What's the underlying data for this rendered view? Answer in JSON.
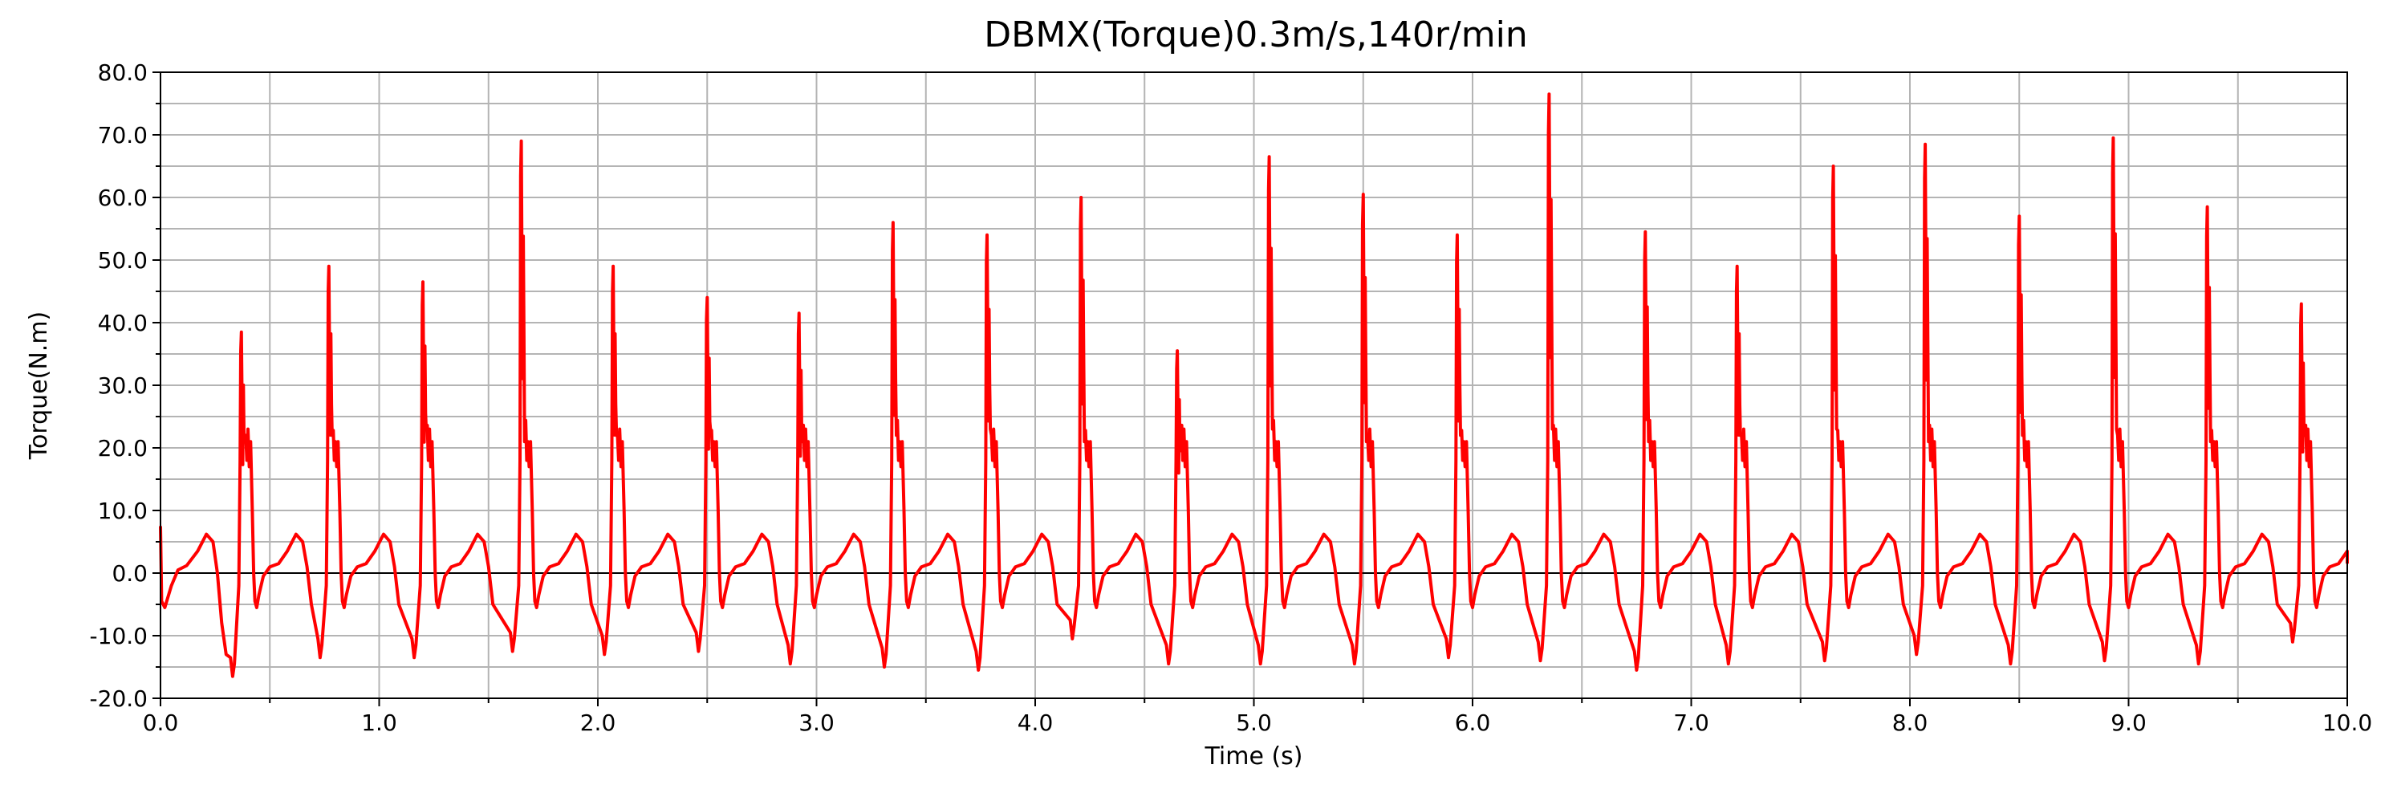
{
  "chart_data": {
    "type": "line",
    "title": "DBMX(Torque)0.3m/s,140r/min",
    "xlabel": "Time (s)",
    "ylabel": "Torque(N.m)",
    "xlim": [
      0.0,
      10.0
    ],
    "ylim": [
      -20.0,
      80.0
    ],
    "xticks": [
      "0.0",
      "1.0",
      "2.0",
      "3.0",
      "4.0",
      "5.0",
      "6.0",
      "7.0",
      "8.0",
      "9.0",
      "10.0"
    ],
    "yticks": [
      "80.0",
      "70.0",
      "60.0",
      "50.0",
      "40.0",
      "30.0",
      "20.0",
      "10.0",
      "0.0",
      "-10.0",
      "-20.0"
    ],
    "grid": true,
    "legend": "none",
    "series_color": "#ff0000",
    "grid_color": "#b4b4b4",
    "zero_line_color": "#000000",
    "period_s": 0.429,
    "first_peak_s": 0.37,
    "baseline_hump_max": 6.2,
    "negative_min_typical": -14.0,
    "peaks": [
      {
        "t": 0.37,
        "max": 38.5
      },
      {
        "t": 0.77,
        "max": 49.0
      },
      {
        "t": 1.2,
        "max": 46.5
      },
      {
        "t": 1.65,
        "max": 69.0
      },
      {
        "t": 2.07,
        "max": 49.0
      },
      {
        "t": 2.5,
        "max": 44.0
      },
      {
        "t": 2.92,
        "max": 41.5
      },
      {
        "t": 3.35,
        "max": 56.0
      },
      {
        "t": 3.78,
        "max": 54.0
      },
      {
        "t": 4.21,
        "max": 60.0
      },
      {
        "t": 4.65,
        "max": 35.5
      },
      {
        "t": 5.07,
        "max": 66.5
      },
      {
        "t": 5.5,
        "max": 60.5
      },
      {
        "t": 5.93,
        "max": 54.0
      },
      {
        "t": 6.35,
        "max": 76.5
      },
      {
        "t": 6.79,
        "max": 54.5
      },
      {
        "t": 7.21,
        "max": 49.0
      },
      {
        "t": 7.65,
        "max": 65.0
      },
      {
        "t": 8.07,
        "max": 68.5
      },
      {
        "t": 8.5,
        "max": 57.0
      },
      {
        "t": 8.93,
        "max": 69.5
      },
      {
        "t": 9.36,
        "max": 58.5
      },
      {
        "t": 9.79,
        "max": 43.0
      }
    ],
    "minima": [
      {
        "t": 0.33,
        "min": -16.5
      },
      {
        "t": 0.73,
        "min": -13.5
      },
      {
        "t": 1.16,
        "min": -13.5
      },
      {
        "t": 1.61,
        "min": -12.5
      },
      {
        "t": 2.03,
        "min": -13.0
      },
      {
        "t": 2.46,
        "min": -12.5
      },
      {
        "t": 2.88,
        "min": -14.5
      },
      {
        "t": 3.31,
        "min": -15.0
      },
      {
        "t": 3.74,
        "min": -15.5
      },
      {
        "t": 4.17,
        "min": -10.5
      },
      {
        "t": 4.61,
        "min": -14.5
      },
      {
        "t": 5.03,
        "min": -14.5
      },
      {
        "t": 5.46,
        "min": -14.5
      },
      {
        "t": 5.89,
        "min": -13.5
      },
      {
        "t": 6.31,
        "min": -14.0
      },
      {
        "t": 6.75,
        "min": -15.5
      },
      {
        "t": 7.17,
        "min": -14.5
      },
      {
        "t": 7.61,
        "min": -14.0
      },
      {
        "t": 8.03,
        "min": -13.0
      },
      {
        "t": 8.46,
        "min": -14.5
      },
      {
        "t": 8.89,
        "min": -14.0
      },
      {
        "t": 9.32,
        "min": -14.5
      },
      {
        "t": 9.75,
        "min": -11.0
      }
    ]
  }
}
